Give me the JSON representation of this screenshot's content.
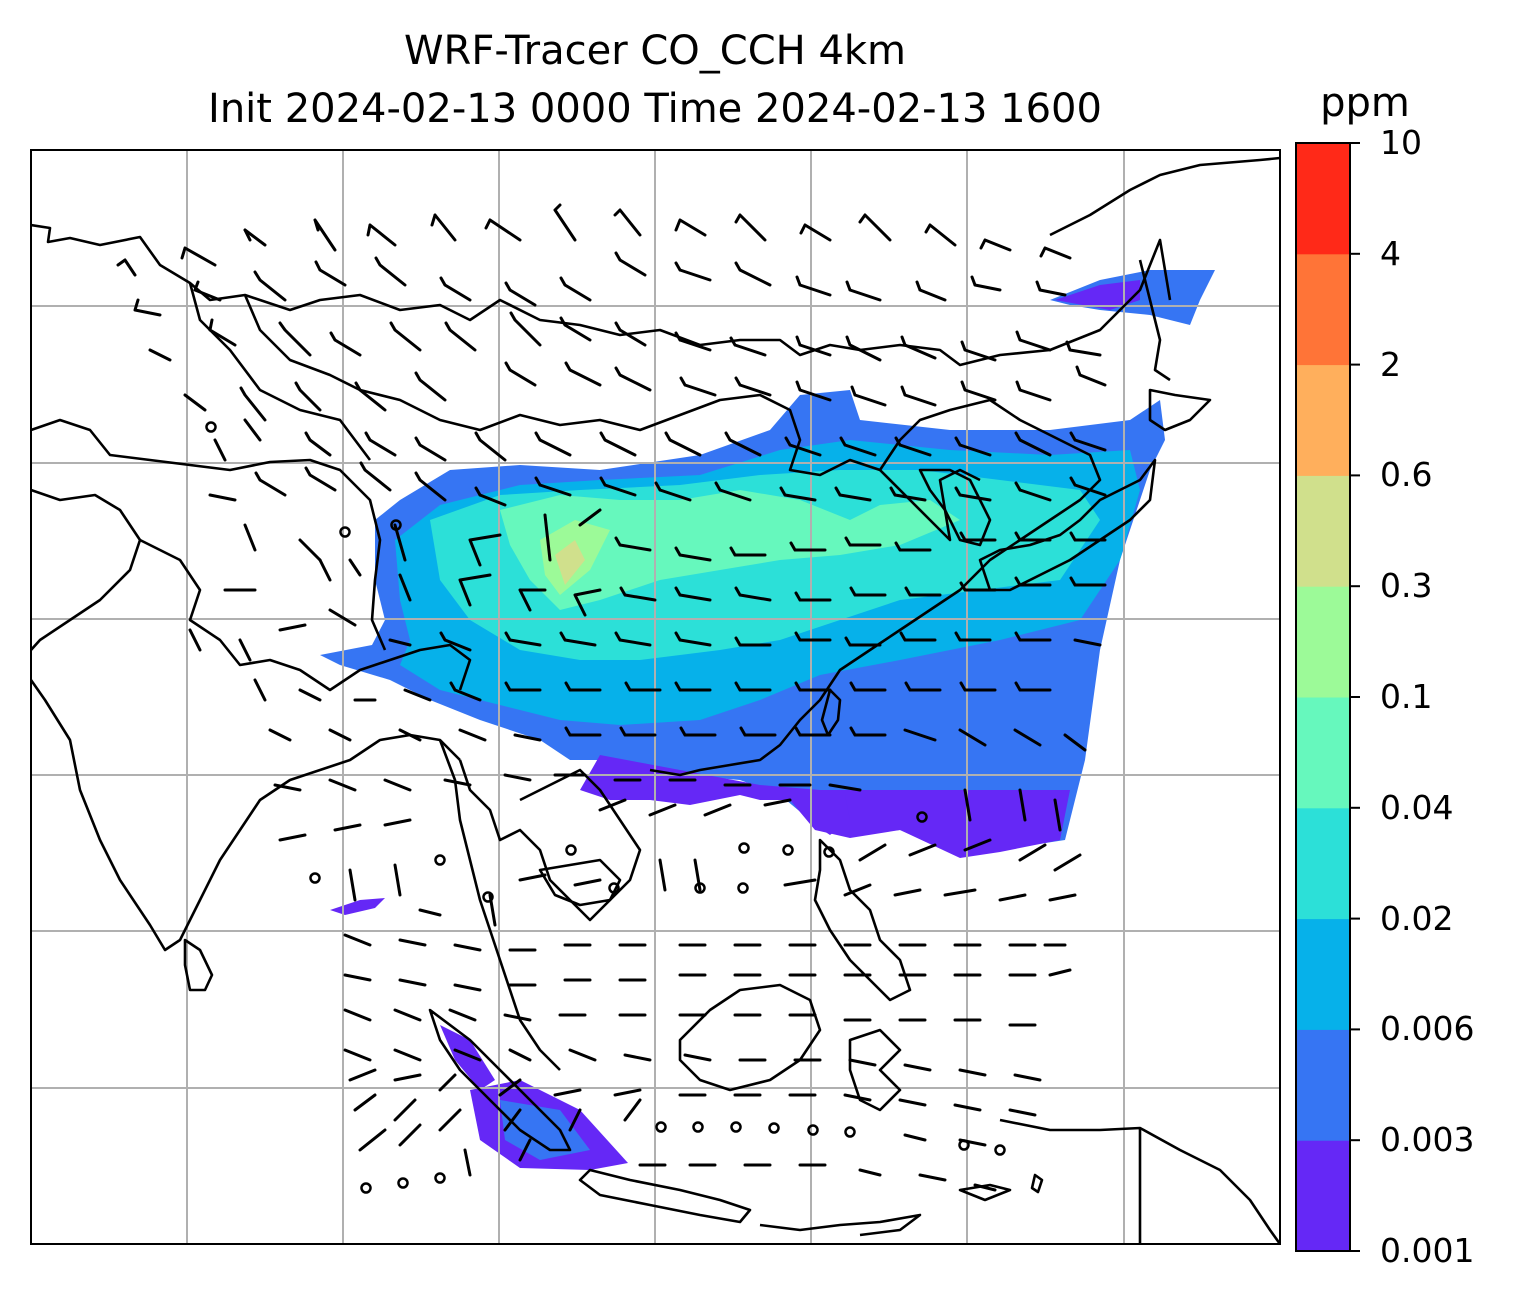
{
  "title": {
    "line1": "WRF-Tracer CO_CCH 4km",
    "line2": "Init 2024-02-13 0000 Time 2024-02-13 1600"
  },
  "colorbar": {
    "unit": "ppm",
    "ticks": [
      "0.001",
      "0.003",
      "0.006",
      "0.02",
      "0.04",
      "0.1",
      "0.3",
      "0.6",
      "2",
      "4",
      "10"
    ],
    "colors": [
      "#6528f6",
      "#3675f3",
      "#06b1ea",
      "#2ce0d8",
      "#66f8bd",
      "#9cfa98",
      "#d0e08c",
      "#ffaf5c",
      "#ff7437",
      "#ff2918"
    ]
  },
  "map": {
    "background": "#ffffff",
    "gridline_color": "#b0b0b0",
    "coastline_color": "#000000",
    "barb_color": "#000000",
    "tracer_field": "CO_CCH",
    "wind_symbols": "wind barbs"
  }
}
